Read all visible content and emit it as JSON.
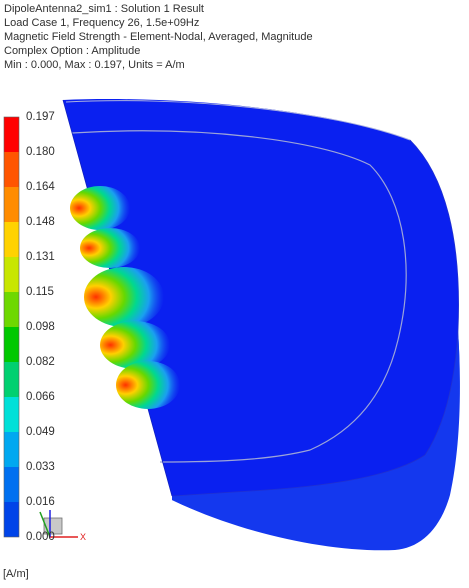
{
  "header": {
    "lines": [
      "DipoleAntenna2_sim1 : Solution 1 Result",
      "Load Case 1, Frequency 26, 1.5e+09Hz",
      "Magnetic Field Strength - Element-Nodal, Averaged, Magnitude",
      "Complex Option : Amplitude",
      "Min : 0.000, Max : 0.197, Units = A/m"
    ]
  },
  "legend": {
    "labels": [
      "0.197",
      "0.180",
      "0.164",
      "0.148",
      "0.131",
      "0.115",
      "0.098",
      "0.082",
      "0.066",
      "0.049",
      "0.033",
      "0.016",
      "0.000"
    ],
    "colors": [
      "#ff0000",
      "#ff5500",
      "#ff8c00",
      "#ffd200",
      "#c8e600",
      "#6ed800",
      "#00c800",
      "#00d070",
      "#00e0d8",
      "#00a8f0",
      "#0070f0",
      "#0044e8",
      "#0000ff"
    ],
    "units_label": "[A/m]"
  },
  "triad": {
    "x_label": "X"
  },
  "model": {
    "fill": "#0a1cf0",
    "side_fill": "#1030e8"
  }
}
